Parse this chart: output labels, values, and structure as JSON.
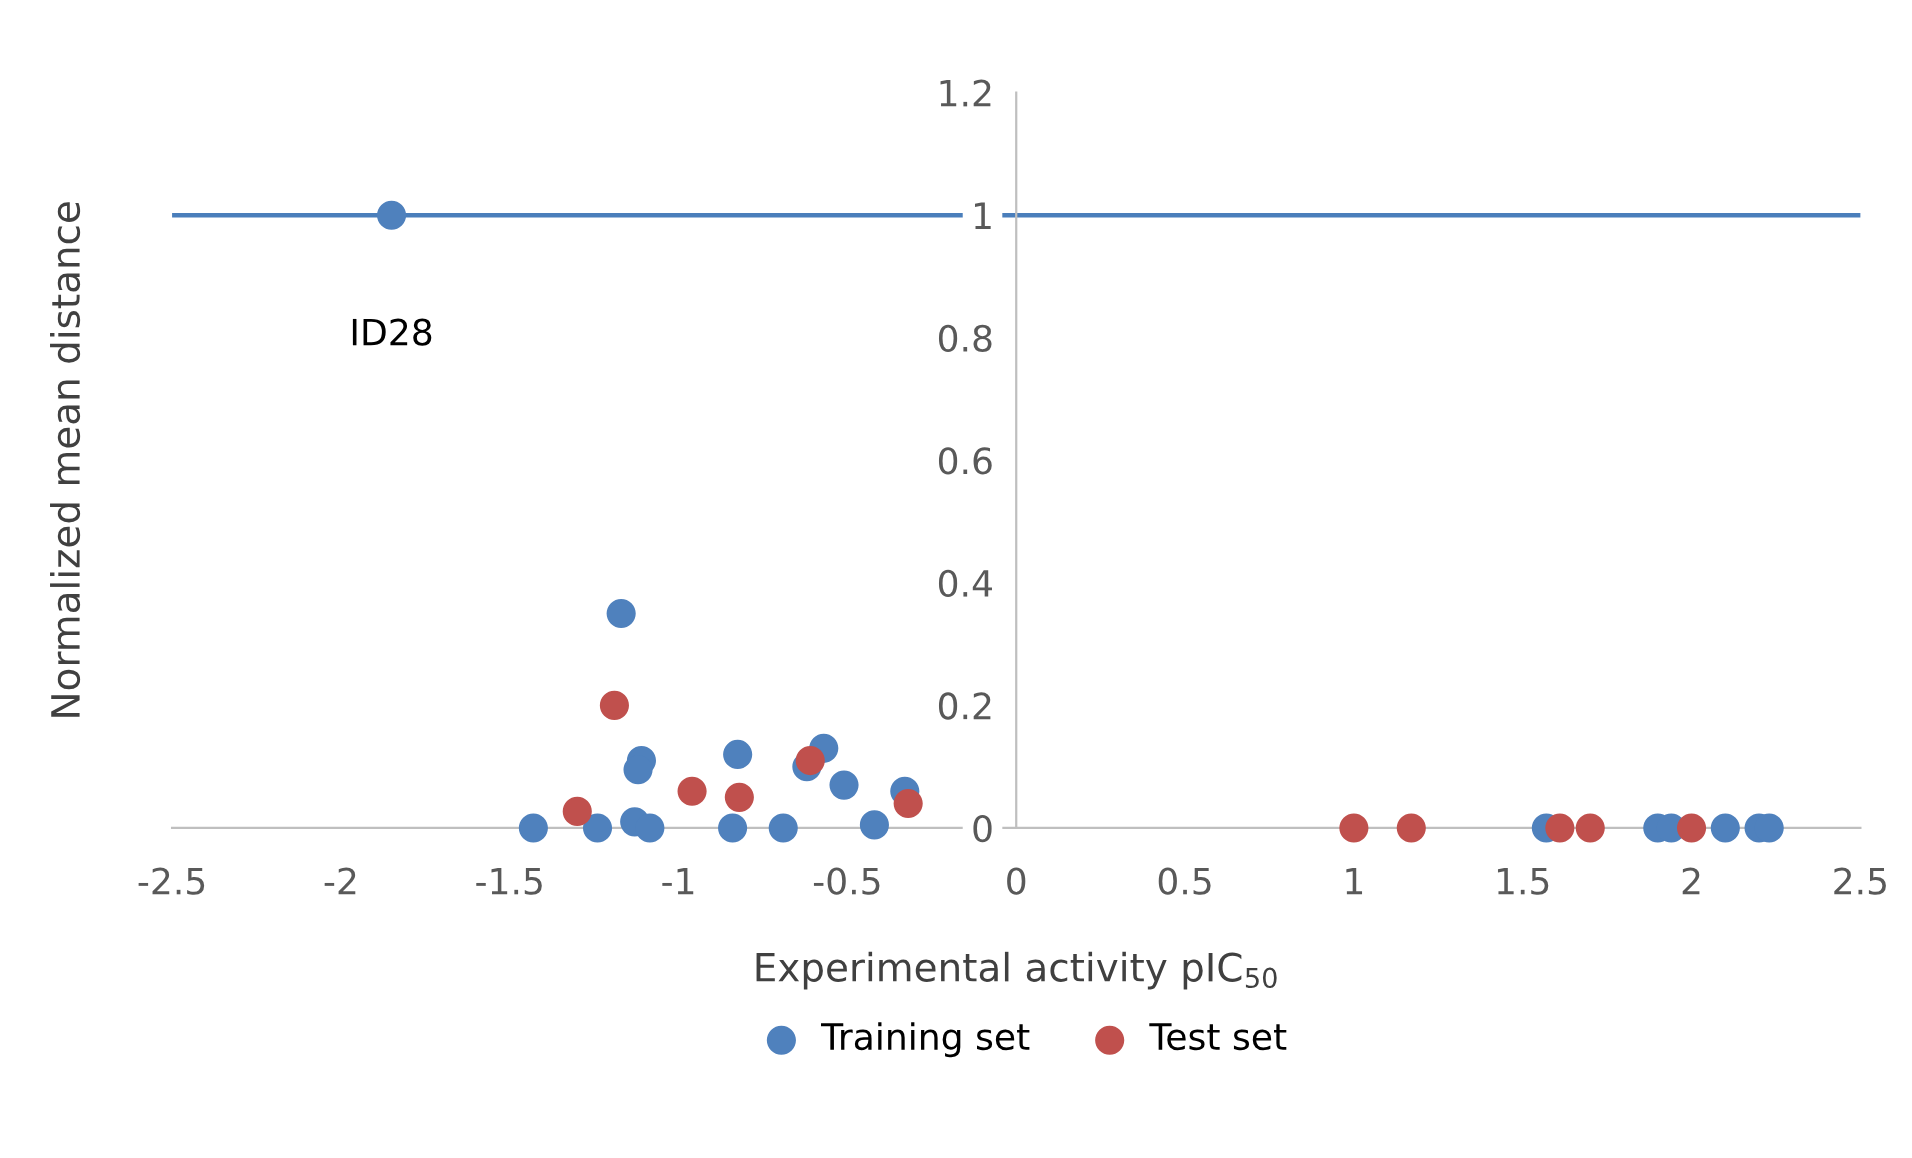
{
  "chart_data": {
    "type": "scatter",
    "xlabel": "Experimental activity pIC$_{50}$",
    "ylabel": "Normalized mean distance",
    "series": [
      {
        "name": "Training set",
        "color": "#4f81bd",
        "x": [
          -1.85,
          -1.17,
          -1.43,
          -1.24,
          -1.13,
          -1.11,
          -1.12,
          -1.085,
          -0.825,
          -0.84,
          -0.69,
          -0.62,
          -0.57,
          -0.51,
          -0.42,
          -0.33,
          1.57,
          1.9,
          1.94,
          2.1,
          2.2,
          2.23
        ],
        "values": [
          1.0,
          0.35,
          0.0,
          0.0,
          0.01,
          0.11,
          0.095,
          0.0,
          0.12,
          0.0,
          0.0,
          0.1,
          0.13,
          0.07,
          0.005,
          0.06,
          0,
          0,
          0,
          0,
          0,
          0
        ]
      },
      {
        "name": "Test set",
        "color": "#c0504d",
        "x": [
          -1.3,
          -1.19,
          -0.96,
          -0.82,
          -0.61,
          -0.32,
          1.0,
          1.17,
          1.61,
          1.7,
          2.0
        ],
        "values": [
          0.027,
          0.2,
          0.06,
          0.05,
          0.11,
          0.04,
          0,
          0,
          0,
          0,
          0
        ]
      }
    ],
    "ref_lines": [
      {
        "axis": "y",
        "value": 1,
        "color": "#4a7ebb"
      }
    ],
    "annotations": [
      "ID28"
    ],
    "xlim": [
      -2.5,
      2.5
    ],
    "xticks": [
      -2.5,
      -2,
      -1.5,
      -1,
      -0.5,
      0,
      0.5,
      1,
      1.5,
      2,
      2.5
    ],
    "ylim": [
      0,
      1.2
    ],
    "yticks": [
      0,
      0.2,
      0.4,
      0.6,
      0.8,
      1,
      1.2
    ],
    "marker": "circle",
    "grid": false,
    "legend": "bottom"
  }
}
